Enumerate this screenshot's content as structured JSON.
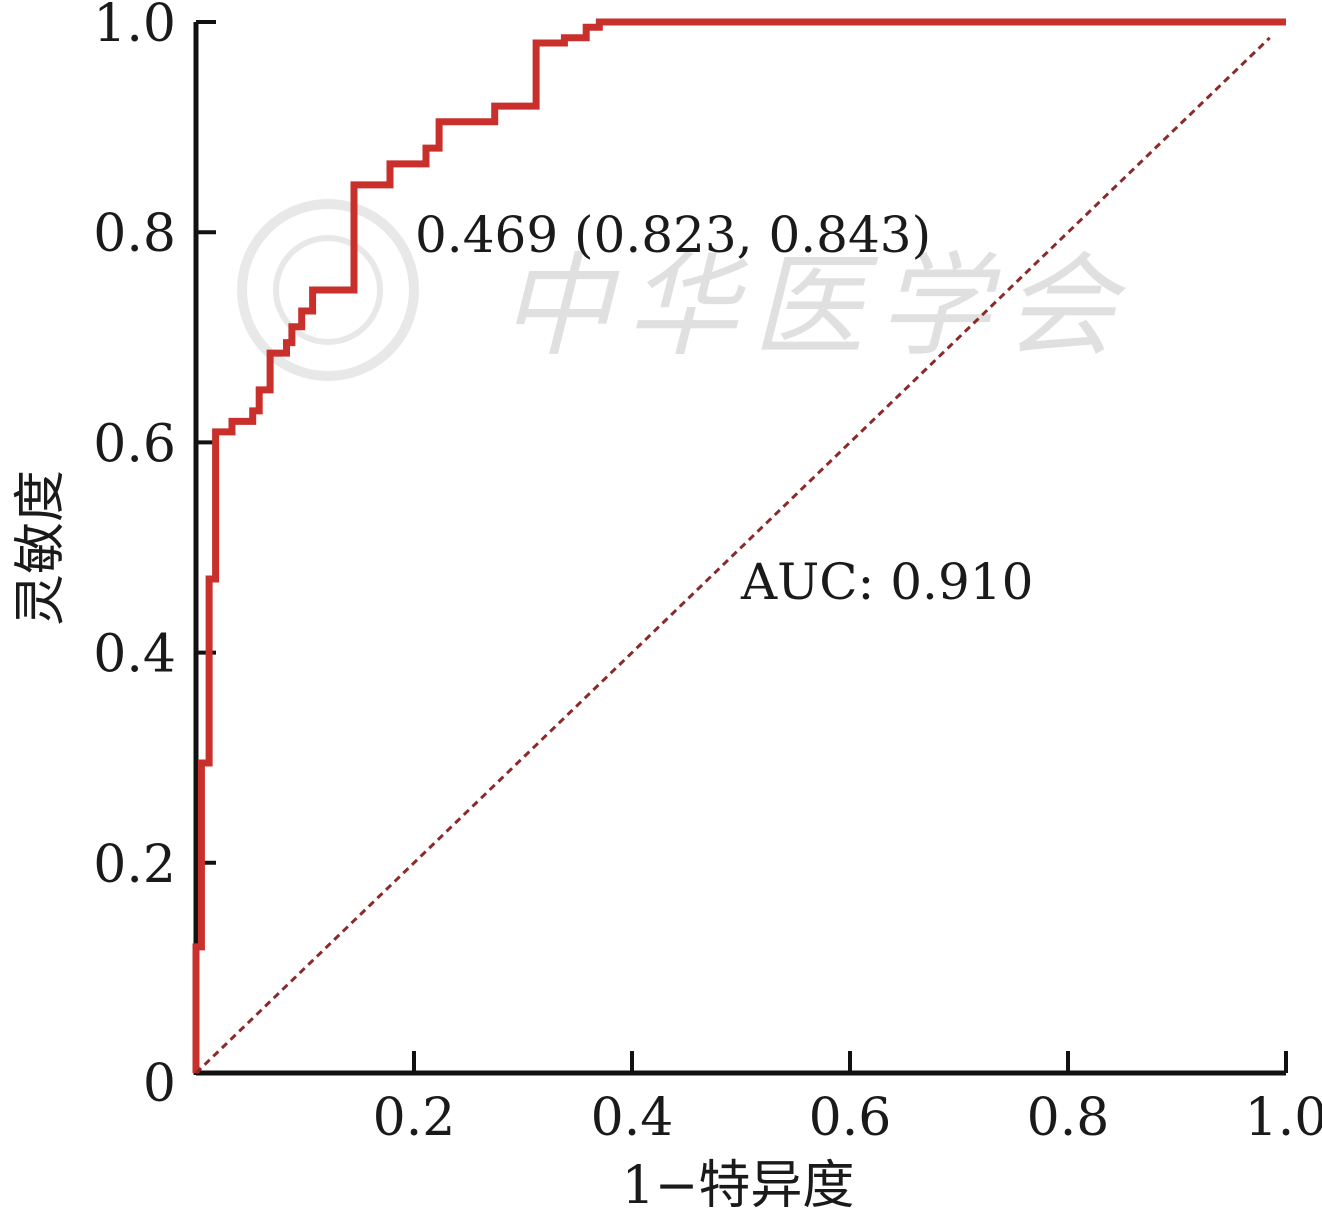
{
  "chart_data": {
    "type": "line",
    "xlabel": "1−特异度",
    "ylabel": "灵敏度",
    "xlim": [
      0,
      1.0
    ],
    "ylim": [
      0,
      1.0
    ],
    "x_ticks": [
      {
        "value": 0.2,
        "label": "0.2"
      },
      {
        "value": 0.4,
        "label": "0.4"
      },
      {
        "value": 0.6,
        "label": "0.6"
      },
      {
        "value": 0.8,
        "label": "0.8"
      },
      {
        "value": 1.0,
        "label": "1.0"
      }
    ],
    "y_ticks": [
      {
        "value": 0.0,
        "label": "0"
      },
      {
        "value": 0.2,
        "label": "0.2"
      },
      {
        "value": 0.4,
        "label": "0.4"
      },
      {
        "value": 0.6,
        "label": "0.6"
      },
      {
        "value": 0.8,
        "label": "0.8"
      },
      {
        "value": 1.0,
        "label": "1.0"
      }
    ],
    "grid": false,
    "series": [
      {
        "color": "#c9302c",
        "style": "solid",
        "x": [
          0.0,
          0.0,
          0.005,
          0.005,
          0.012,
          0.012,
          0.018,
          0.018,
          0.033,
          0.033,
          0.052,
          0.052,
          0.058,
          0.058,
          0.068,
          0.068,
          0.083,
          0.083,
          0.088,
          0.088,
          0.097,
          0.097,
          0.107,
          0.107,
          0.116,
          0.116,
          0.145,
          0.145,
          0.172,
          0.172,
          0.178,
          0.178,
          0.211,
          0.211,
          0.223,
          0.223,
          0.274,
          0.274,
          0.312,
          0.312,
          0.338,
          0.338,
          0.358,
          0.358,
          0.37,
          0.37,
          0.38,
          1.0
        ],
        "y": [
          0.0,
          0.12,
          0.12,
          0.295,
          0.295,
          0.47,
          0.47,
          0.61,
          0.61,
          0.62,
          0.62,
          0.63,
          0.63,
          0.65,
          0.65,
          0.685,
          0.685,
          0.695,
          0.695,
          0.71,
          0.71,
          0.725,
          0.725,
          0.745,
          0.745,
          0.745,
          0.745,
          0.845,
          0.845,
          0.845,
          0.845,
          0.865,
          0.865,
          0.88,
          0.88,
          0.905,
          0.905,
          0.92,
          0.92,
          0.98,
          0.98,
          0.985,
          0.985,
          0.995,
          0.995,
          1.0,
          1.0,
          1.0
        ]
      },
      {
        "color": "#8b2a2a",
        "style": "dashed",
        "x": [
          0.0,
          0.985
        ],
        "y": [
          0.0,
          0.985
        ]
      }
    ],
    "cutoff_point": {
      "threshold": 0.469,
      "x": 0.823,
      "y": 0.843,
      "label": "0.469 (0.823, 0.843)"
    },
    "annotations": [
      {
        "text": "AUC: 0.910"
      }
    ]
  },
  "watermark": {
    "text": "中华医学会"
  }
}
